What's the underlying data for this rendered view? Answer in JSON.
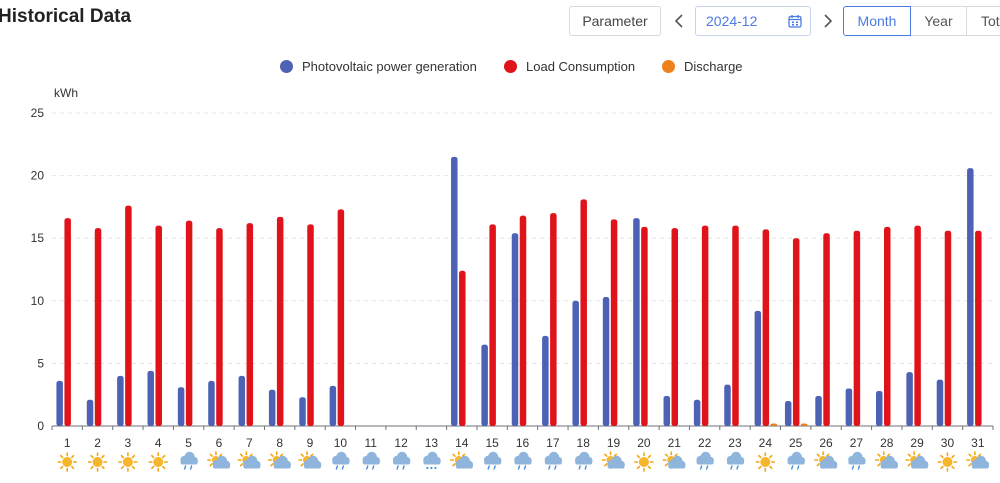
{
  "page": {
    "title": "Historical Data"
  },
  "toolbar": {
    "parameter_label": "Parameter",
    "prev_icon": "chevron-left-icon",
    "next_icon": "chevron-right-icon",
    "date_value": "2024-12",
    "calendar_icon": "calendar-icon",
    "range_tabs": [
      "Month",
      "Year",
      "Tot"
    ],
    "active_tab": "Month"
  },
  "colors": {
    "pv": "#4d62b5",
    "load": "#e0131b",
    "discharge": "#ee7f1a",
    "active_accent": "#4d7be3"
  },
  "chart_data": {
    "type": "bar",
    "ylabel": "kWh",
    "ylim": [
      0,
      25
    ],
    "yticks": [
      0,
      5,
      10,
      15,
      20,
      25
    ],
    "grid": true,
    "legend_position": "top-center",
    "categories": [
      "1",
      "2",
      "3",
      "4",
      "5",
      "6",
      "7",
      "8",
      "9",
      "10",
      "11",
      "12",
      "13",
      "14",
      "15",
      "16",
      "17",
      "18",
      "19",
      "20",
      "21",
      "22",
      "23",
      "24",
      "25",
      "26",
      "27",
      "28",
      "29",
      "30",
      "31"
    ],
    "series": [
      {
        "name": "Photovoltaic power generation",
        "color": "#4d62b5",
        "values": [
          3.6,
          2.1,
          4.0,
          4.4,
          3.1,
          3.6,
          4.0,
          2.9,
          2.3,
          3.2,
          0,
          0,
          0,
          21.5,
          6.5,
          15.4,
          7.2,
          10.0,
          10.3,
          16.6,
          2.4,
          2.1,
          3.3,
          9.2,
          2.0,
          2.4,
          3.0,
          2.8,
          4.3,
          3.7,
          20.6
        ]
      },
      {
        "name": "Load Consumption",
        "color": "#e0131b",
        "values": [
          16.6,
          15.8,
          17.6,
          16.0,
          16.4,
          15.8,
          16.2,
          16.7,
          16.1,
          17.3,
          0,
          0,
          0,
          12.4,
          16.1,
          16.8,
          17.0,
          18.1,
          16.5,
          15.9,
          15.8,
          16.0,
          16.0,
          15.7,
          15.0,
          15.4,
          15.6,
          15.9,
          16.0,
          15.6,
          15.6
        ]
      },
      {
        "name": "Discharge",
        "color": "#ee7f1a",
        "values": [
          0,
          0,
          0,
          0,
          0,
          0,
          0,
          0,
          0,
          0,
          0,
          0,
          0,
          0,
          0,
          0,
          0,
          0,
          0,
          0,
          0,
          0,
          0,
          0.2,
          0.2,
          0,
          0,
          0,
          0,
          0,
          0
        ]
      }
    ],
    "weather_icons": [
      "sunny",
      "sunny",
      "sunny",
      "sunny",
      "rain",
      "partly-cloudy",
      "partly-cloudy",
      "partly-cloudy",
      "partly-cloudy",
      "rain",
      "rain",
      "rain",
      "snow",
      "partly-cloudy",
      "rain",
      "rain",
      "rain",
      "rain",
      "partly-cloudy",
      "sunny",
      "partly-cloudy",
      "rain",
      "rain",
      "sunny",
      "rain",
      "partly-cloudy",
      "rain",
      "partly-cloudy",
      "partly-cloudy",
      "sunny",
      "partly-cloudy"
    ]
  }
}
